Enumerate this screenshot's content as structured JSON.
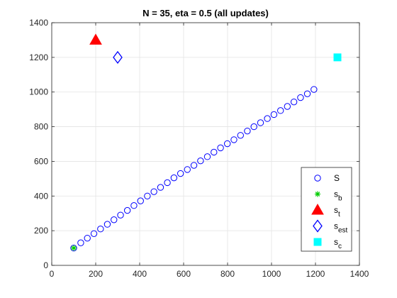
{
  "chart_data": {
    "type": "scatter",
    "title": "N = 35, eta = 0.5 (all updates)",
    "xlabel": "",
    "ylabel": "",
    "xlim": [
      0,
      1400
    ],
    "ylim": [
      0,
      1400
    ],
    "xticks": [
      0,
      200,
      400,
      600,
      800,
      1000,
      1200,
      1400
    ],
    "yticks": [
      0,
      200,
      400,
      600,
      800,
      1000,
      1200,
      1400
    ],
    "grid": true,
    "legend_position": "bottom-right",
    "series": [
      {
        "name": "S",
        "marker": "open-circle",
        "color": "#0000ff",
        "points": [
          [
            100,
            100
          ],
          [
            132,
            130
          ],
          [
            162,
            157
          ],
          [
            192,
            183
          ],
          [
            222,
            210
          ],
          [
            253,
            237
          ],
          [
            283,
            263
          ],
          [
            313,
            290
          ],
          [
            344,
            317
          ],
          [
            374,
            345
          ],
          [
            404,
            372
          ],
          [
            435,
            400
          ],
          [
            465,
            425
          ],
          [
            495,
            450
          ],
          [
            526,
            477
          ],
          [
            556,
            505
          ],
          [
            586,
            530
          ],
          [
            617,
            553
          ],
          [
            647,
            577
          ],
          [
            677,
            603
          ],
          [
            708,
            627
          ],
          [
            738,
            653
          ],
          [
            768,
            678
          ],
          [
            799,
            702
          ],
          [
            829,
            725
          ],
          [
            859,
            750
          ],
          [
            890,
            775
          ],
          [
            920,
            800
          ],
          [
            950,
            823
          ],
          [
            981,
            847
          ],
          [
            1011,
            870
          ],
          [
            1041,
            893
          ],
          [
            1072,
            917
          ],
          [
            1102,
            943
          ],
          [
            1132,
            968
          ],
          [
            1163,
            990
          ],
          [
            1193,
            1015
          ]
        ]
      },
      {
        "name": "s_b",
        "marker": "asterisk",
        "color": "#00cc00",
        "points": [
          [
            100,
            100
          ]
        ]
      },
      {
        "name": "s_t",
        "marker": "filled-triangle",
        "color": "#ff0000",
        "points": [
          [
            200,
            1300
          ]
        ]
      },
      {
        "name": "s_est",
        "marker": "open-diamond",
        "color": "#0000ff",
        "points": [
          [
            300,
            1200
          ]
        ]
      },
      {
        "name": "s_c",
        "marker": "filled-square",
        "color": "#00ffff",
        "points": [
          [
            1300,
            1200
          ]
        ]
      }
    ],
    "legend": [
      {
        "base": "S",
        "sub": ""
      },
      {
        "base": "s",
        "sub": "b"
      },
      {
        "base": "s",
        "sub": "t"
      },
      {
        "base": "s",
        "sub": "est"
      },
      {
        "base": "s",
        "sub": "c"
      }
    ]
  }
}
